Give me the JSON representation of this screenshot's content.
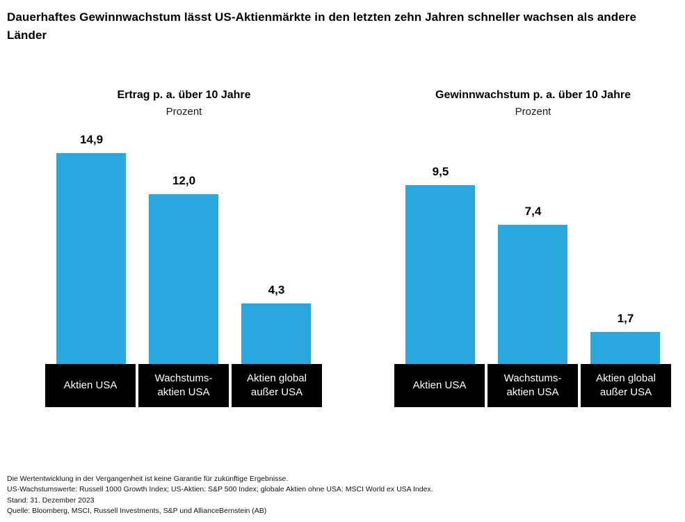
{
  "title": "Dauerhaftes Gewinnwachstum lässt US-Aktienmärkte in den letzten zehn Jahren schneller wachsen als andere Länder",
  "colors": {
    "bar": "#29a8df",
    "label_box_bg": "#000000",
    "label_box_text": "#ffffff"
  },
  "chart_data": [
    {
      "type": "bar",
      "title": "Ertrag p. a. über 10 Jahre",
      "subtitle": "Prozent",
      "categories": [
        "Aktien USA",
        "Wachstumsaktien USA",
        "Aktien global außer USA"
      ],
      "categories_lines": [
        [
          "Aktien USA"
        ],
        [
          "Wachstums-",
          "aktien USA"
        ],
        [
          "Aktien global",
          "außer USA"
        ]
      ],
      "values": [
        14.9,
        12.0,
        4.3
      ],
      "value_labels": [
        "14,9",
        "12,0",
        "4,3"
      ],
      "xlabel": "",
      "ylabel": "Prozent",
      "ylim": [
        0,
        16
      ],
      "grid": false,
      "legend": false
    },
    {
      "type": "bar",
      "title": "Gewinnwachstum p. a. über 10 Jahre",
      "subtitle": "Prozent",
      "categories": [
        "Aktien USA",
        "Wachstumsaktien USA",
        "Aktien global außer USA"
      ],
      "categories_lines": [
        [
          "Aktien USA"
        ],
        [
          "Wachstums-",
          "aktien USA"
        ],
        [
          "Aktien global",
          "außer USA"
        ]
      ],
      "values": [
        9.5,
        7.4,
        1.7
      ],
      "value_labels": [
        "9,5",
        "7,4",
        "1,7"
      ],
      "xlabel": "",
      "ylabel": "Prozent",
      "ylim": [
        0,
        12
      ],
      "grid": false,
      "legend": false
    }
  ],
  "footnotes": [
    "Die Wertentwicklung in der Vergangenheit ist keine Garantie für zukünftige Ergebnisse.",
    "US-Wachstumswerte: Russell 1000 Growth Index; US-Aktien: S&P 500 Index; globale Aktien ohne USA: MSCI World ex USA Index.",
    "Stand: 31. Dezember 2023",
    "Quelle: Bloomberg, MSCI, Russell Investments, S&P und AllianceBernstein (AB)"
  ]
}
